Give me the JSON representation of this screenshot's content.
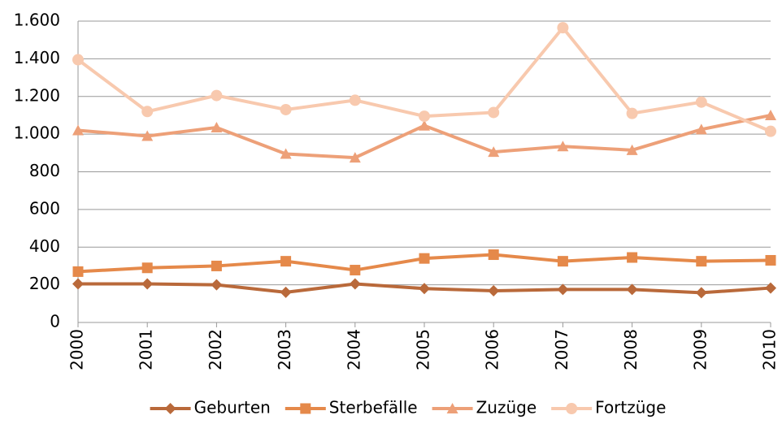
{
  "chart_data": {
    "type": "line",
    "x": [
      2000,
      2001,
      2002,
      2003,
      2004,
      2005,
      2006,
      2007,
      2008,
      2009,
      2010
    ],
    "xlim": [
      2000,
      2010
    ],
    "xticks": [
      2000,
      2001,
      2002,
      2003,
      2004,
      2005,
      2006,
      2007,
      2008,
      2009,
      2010
    ],
    "ylim": [
      0,
      1600
    ],
    "yticks": [
      0,
      200,
      400,
      600,
      800,
      {
        "value": 1000,
        "label": "1.000"
      },
      {
        "value": 1200,
        "label": "1.200"
      },
      {
        "value": 1400,
        "label": "1.400"
      },
      {
        "value": 1600,
        "label": "1.600"
      }
    ],
    "grid": true,
    "legend": "bottom",
    "series": [
      {
        "name": "Geburten",
        "color": "#b9693a",
        "marker": "diamond",
        "values": [
          205,
          205,
          200,
          160,
          205,
          180,
          168,
          175,
          175,
          158,
          183
        ]
      },
      {
        "name": "Sterbefälle",
        "color": "#e5894a",
        "marker": "square",
        "values": [
          270,
          290,
          300,
          325,
          278,
          340,
          360,
          325,
          345,
          325,
          330
        ]
      },
      {
        "name": "Zuzüge",
        "color": "#eda078",
        "marker": "triangle",
        "values": [
          1020,
          990,
          1035,
          895,
          875,
          1045,
          905,
          935,
          915,
          1025,
          1100
        ]
      },
      {
        "name": "Fortzüge",
        "color": "#f8c9ae",
        "marker": "circle",
        "values": [
          1395,
          1120,
          1205,
          1130,
          1180,
          1095,
          1115,
          1565,
          1110,
          1170,
          1015
        ]
      }
    ]
  }
}
